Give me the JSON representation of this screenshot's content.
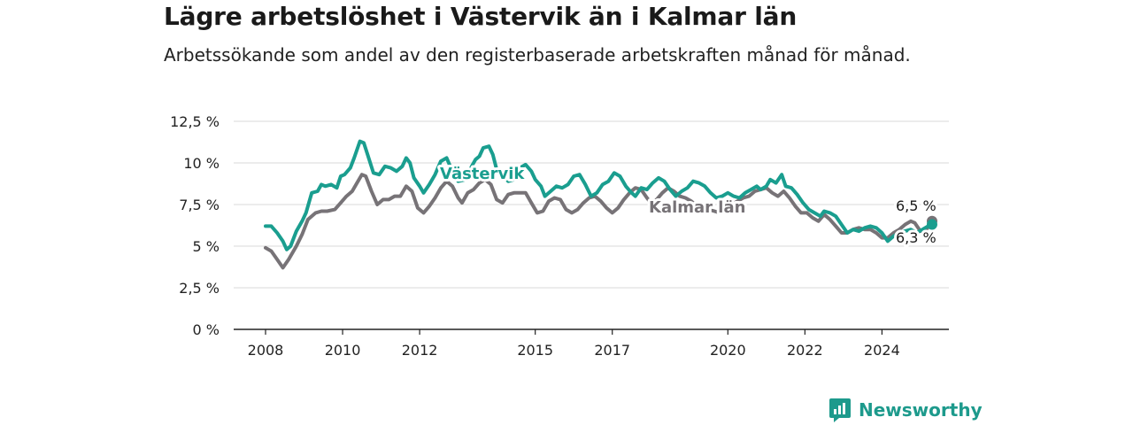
{
  "title": "Lägre arbetslöshet i Västervik än i Kalmar län",
  "subtitle": "Arbetssökande som andel av den registerbaserade arbetskraften månad för månad.",
  "brand": "Newsworthy",
  "colors": {
    "vastervik": "#1a9e8f",
    "kalmar": "#777377",
    "grid": "#d9d9d9",
    "axis": "#222222",
    "brand": "#1d9a8c"
  },
  "chart_data": {
    "type": "line",
    "ylim": [
      0,
      12.5
    ],
    "xlim": [
      2008,
      2025
    ],
    "y_ticks": [
      0,
      2.5,
      5,
      7.5,
      10,
      12.5
    ],
    "y_tick_labels": [
      "0 %",
      "2,5 %",
      "5 %",
      "7,5 %",
      "10 %",
      "12,5 %"
    ],
    "x_ticks": [
      2008,
      2010,
      2012,
      2015,
      2017,
      2020,
      2022,
      2024
    ],
    "x_tick_labels": [
      "2008",
      "2010",
      "2012",
      "2015",
      "2017",
      "2020",
      "2022",
      "2024"
    ],
    "grid": true,
    "series": [
      {
        "name": "Västervik",
        "end_label": "6,3 %",
        "points": [
          [
            2008.0,
            6.2
          ],
          [
            2008.15,
            6.2
          ],
          [
            2008.3,
            5.8
          ],
          [
            2008.45,
            5.3
          ],
          [
            2008.55,
            4.8
          ],
          [
            2008.65,
            5.0
          ],
          [
            2008.8,
            5.9
          ],
          [
            2008.95,
            6.5
          ],
          [
            2009.05,
            7.0
          ],
          [
            2009.2,
            8.2
          ],
          [
            2009.35,
            8.3
          ],
          [
            2009.45,
            8.7
          ],
          [
            2009.55,
            8.6
          ],
          [
            2009.7,
            8.7
          ],
          [
            2009.85,
            8.5
          ],
          [
            2009.95,
            9.2
          ],
          [
            2010.05,
            9.3
          ],
          [
            2010.2,
            9.7
          ],
          [
            2010.3,
            10.3
          ],
          [
            2010.45,
            11.3
          ],
          [
            2010.55,
            11.2
          ],
          [
            2010.65,
            10.5
          ],
          [
            2010.8,
            9.4
          ],
          [
            2010.95,
            9.3
          ],
          [
            2011.1,
            9.8
          ],
          [
            2011.25,
            9.7
          ],
          [
            2011.4,
            9.5
          ],
          [
            2011.55,
            9.8
          ],
          [
            2011.65,
            10.3
          ],
          [
            2011.75,
            10.0
          ],
          [
            2011.85,
            9.1
          ],
          [
            2012.0,
            8.6
          ],
          [
            2012.1,
            8.2
          ],
          [
            2012.25,
            8.7
          ],
          [
            2012.4,
            9.3
          ],
          [
            2012.55,
            10.1
          ],
          [
            2012.7,
            10.3
          ],
          [
            2012.85,
            9.5
          ],
          [
            2013.0,
            8.9
          ],
          [
            2013.2,
            9.0
          ],
          [
            2013.35,
            9.8
          ],
          [
            2013.45,
            10.2
          ],
          [
            2013.55,
            10.4
          ],
          [
            2013.65,
            10.9
          ],
          [
            2013.8,
            11.0
          ],
          [
            2013.9,
            10.5
          ],
          [
            2014.0,
            9.6
          ],
          [
            2014.15,
            9.2
          ],
          [
            2014.3,
            8.9
          ],
          [
            2014.45,
            9.0
          ],
          [
            2014.6,
            9.7
          ],
          [
            2014.75,
            9.9
          ],
          [
            2014.9,
            9.5
          ],
          [
            2015.0,
            9.0
          ],
          [
            2015.15,
            8.6
          ],
          [
            2015.25,
            8.0
          ],
          [
            2015.4,
            8.3
          ],
          [
            2015.55,
            8.6
          ],
          [
            2015.7,
            8.5
          ],
          [
            2015.85,
            8.7
          ],
          [
            2016.0,
            9.2
          ],
          [
            2016.15,
            9.3
          ],
          [
            2016.3,
            8.7
          ],
          [
            2016.45,
            8.0
          ],
          [
            2016.6,
            8.2
          ],
          [
            2016.75,
            8.7
          ],
          [
            2016.9,
            8.9
          ],
          [
            2017.05,
            9.4
          ],
          [
            2017.2,
            9.2
          ],
          [
            2017.35,
            8.6
          ],
          [
            2017.5,
            8.2
          ],
          [
            2017.6,
            8.0
          ],
          [
            2017.75,
            8.5
          ],
          [
            2017.9,
            8.4
          ],
          [
            2018.05,
            8.8
          ],
          [
            2018.2,
            9.1
          ],
          [
            2018.35,
            8.9
          ],
          [
            2018.5,
            8.4
          ],
          [
            2018.65,
            8.0
          ],
          [
            2018.8,
            8.3
          ],
          [
            2018.95,
            8.5
          ],
          [
            2019.1,
            8.9
          ],
          [
            2019.25,
            8.8
          ],
          [
            2019.4,
            8.6
          ],
          [
            2019.55,
            8.2
          ],
          [
            2019.7,
            7.9
          ],
          [
            2019.85,
            8.0
          ],
          [
            2020.0,
            8.2
          ],
          [
            2020.15,
            8.0
          ],
          [
            2020.3,
            7.9
          ],
          [
            2020.45,
            8.2
          ],
          [
            2020.6,
            8.4
          ],
          [
            2020.75,
            8.6
          ],
          [
            2020.85,
            8.4
          ],
          [
            2021.0,
            8.6
          ],
          [
            2021.1,
            9.0
          ],
          [
            2021.25,
            8.8
          ],
          [
            2021.4,
            9.3
          ],
          [
            2021.5,
            8.6
          ],
          [
            2021.65,
            8.5
          ],
          [
            2021.8,
            8.1
          ],
          [
            2021.95,
            7.6
          ],
          [
            2022.1,
            7.2
          ],
          [
            2022.25,
            7.0
          ],
          [
            2022.4,
            6.8
          ],
          [
            2022.5,
            7.1
          ],
          [
            2022.65,
            7.0
          ],
          [
            2022.8,
            6.8
          ],
          [
            2022.95,
            6.3
          ],
          [
            2023.1,
            5.8
          ],
          [
            2023.25,
            6.0
          ],
          [
            2023.4,
            5.9
          ],
          [
            2023.55,
            6.1
          ],
          [
            2023.7,
            6.2
          ],
          [
            2023.85,
            6.1
          ],
          [
            2024.0,
            5.8
          ],
          [
            2024.15,
            5.3
          ],
          [
            2024.3,
            5.6
          ],
          [
            2024.45,
            5.8
          ],
          [
            2024.6,
            5.9
          ],
          [
            2024.75,
            6.0
          ],
          [
            2024.9,
            5.8
          ],
          [
            2025.05,
            6.0
          ],
          [
            2025.2,
            6.2
          ],
          [
            2025.3,
            6.3
          ]
        ]
      },
      {
        "name": "Kalmar län",
        "end_label": "6,5 %",
        "points": [
          [
            2008.0,
            4.9
          ],
          [
            2008.15,
            4.7
          ],
          [
            2008.3,
            4.2
          ],
          [
            2008.45,
            3.7
          ],
          [
            2008.6,
            4.2
          ],
          [
            2008.8,
            5.0
          ],
          [
            2008.95,
            5.7
          ],
          [
            2009.1,
            6.6
          ],
          [
            2009.3,
            7.0
          ],
          [
            2009.45,
            7.1
          ],
          [
            2009.6,
            7.1
          ],
          [
            2009.8,
            7.2
          ],
          [
            2009.95,
            7.6
          ],
          [
            2010.1,
            8.0
          ],
          [
            2010.25,
            8.3
          ],
          [
            2010.35,
            8.7
          ],
          [
            2010.5,
            9.3
          ],
          [
            2010.6,
            9.2
          ],
          [
            2010.75,
            8.3
          ],
          [
            2010.9,
            7.5
          ],
          [
            2011.05,
            7.8
          ],
          [
            2011.2,
            7.8
          ],
          [
            2011.35,
            8.0
          ],
          [
            2011.5,
            8.0
          ],
          [
            2011.65,
            8.6
          ],
          [
            2011.8,
            8.3
          ],
          [
            2011.95,
            7.3
          ],
          [
            2012.1,
            7.0
          ],
          [
            2012.25,
            7.4
          ],
          [
            2012.4,
            7.9
          ],
          [
            2012.55,
            8.5
          ],
          [
            2012.7,
            8.9
          ],
          [
            2012.85,
            8.6
          ],
          [
            2013.0,
            7.9
          ],
          [
            2013.1,
            7.6
          ],
          [
            2013.25,
            8.2
          ],
          [
            2013.4,
            8.4
          ],
          [
            2013.55,
            8.8
          ],
          [
            2013.7,
            9.0
          ],
          [
            2013.85,
            8.7
          ],
          [
            2014.0,
            7.8
          ],
          [
            2014.15,
            7.6
          ],
          [
            2014.3,
            8.1
          ],
          [
            2014.45,
            8.2
          ],
          [
            2014.6,
            8.2
          ],
          [
            2014.75,
            8.2
          ],
          [
            2014.9,
            7.6
          ],
          [
            2015.05,
            7.0
          ],
          [
            2015.2,
            7.1
          ],
          [
            2015.35,
            7.7
          ],
          [
            2015.5,
            7.9
          ],
          [
            2015.65,
            7.8
          ],
          [
            2015.8,
            7.2
          ],
          [
            2015.95,
            7.0
          ],
          [
            2016.1,
            7.2
          ],
          [
            2016.25,
            7.6
          ],
          [
            2016.4,
            7.9
          ],
          [
            2016.55,
            8.0
          ],
          [
            2016.7,
            7.7
          ],
          [
            2016.85,
            7.3
          ],
          [
            2017.0,
            7.0
          ],
          [
            2017.15,
            7.3
          ],
          [
            2017.3,
            7.8
          ],
          [
            2017.45,
            8.2
          ],
          [
            2017.6,
            8.5
          ],
          [
            2017.75,
            8.4
          ],
          [
            2017.9,
            7.9
          ],
          [
            2018.0,
            7.6
          ],
          [
            2018.15,
            7.8
          ],
          [
            2018.3,
            8.2
          ],
          [
            2018.45,
            8.5
          ],
          [
            2018.6,
            8.3
          ],
          [
            2018.75,
            8.0
          ],
          [
            2018.9,
            7.9
          ],
          [
            2019.05,
            7.7
          ],
          [
            2019.2,
            7.4
          ],
          [
            2019.35,
            7.2
          ],
          [
            2019.5,
            7.2
          ],
          [
            2019.65,
            7.1
          ],
          [
            2019.8,
            7.0
          ],
          [
            2019.95,
            7.2
          ],
          [
            2020.1,
            7.5
          ],
          [
            2020.25,
            7.7
          ],
          [
            2020.4,
            7.9
          ],
          [
            2020.55,
            8.0
          ],
          [
            2020.7,
            8.3
          ],
          [
            2020.85,
            8.4
          ],
          [
            2021.0,
            8.5
          ],
          [
            2021.15,
            8.2
          ],
          [
            2021.3,
            8.0
          ],
          [
            2021.45,
            8.3
          ],
          [
            2021.6,
            7.9
          ],
          [
            2021.75,
            7.4
          ],
          [
            2021.9,
            7.0
          ],
          [
            2022.05,
            7.0
          ],
          [
            2022.2,
            6.7
          ],
          [
            2022.35,
            6.5
          ],
          [
            2022.5,
            6.9
          ],
          [
            2022.65,
            6.6
          ],
          [
            2022.8,
            6.2
          ],
          [
            2022.95,
            5.8
          ],
          [
            2023.1,
            5.8
          ],
          [
            2023.25,
            6.0
          ],
          [
            2023.4,
            6.1
          ],
          [
            2023.55,
            6.0
          ],
          [
            2023.7,
            6.0
          ],
          [
            2023.85,
            5.8
          ],
          [
            2024.0,
            5.5
          ],
          [
            2024.15,
            5.5
          ],
          [
            2024.3,
            5.8
          ],
          [
            2024.45,
            6.0
          ],
          [
            2024.6,
            6.3
          ],
          [
            2024.75,
            6.5
          ],
          [
            2024.85,
            6.4
          ],
          [
            2025.0,
            5.9
          ],
          [
            2025.15,
            6.0
          ],
          [
            2025.3,
            6.5
          ]
        ]
      }
    ]
  }
}
